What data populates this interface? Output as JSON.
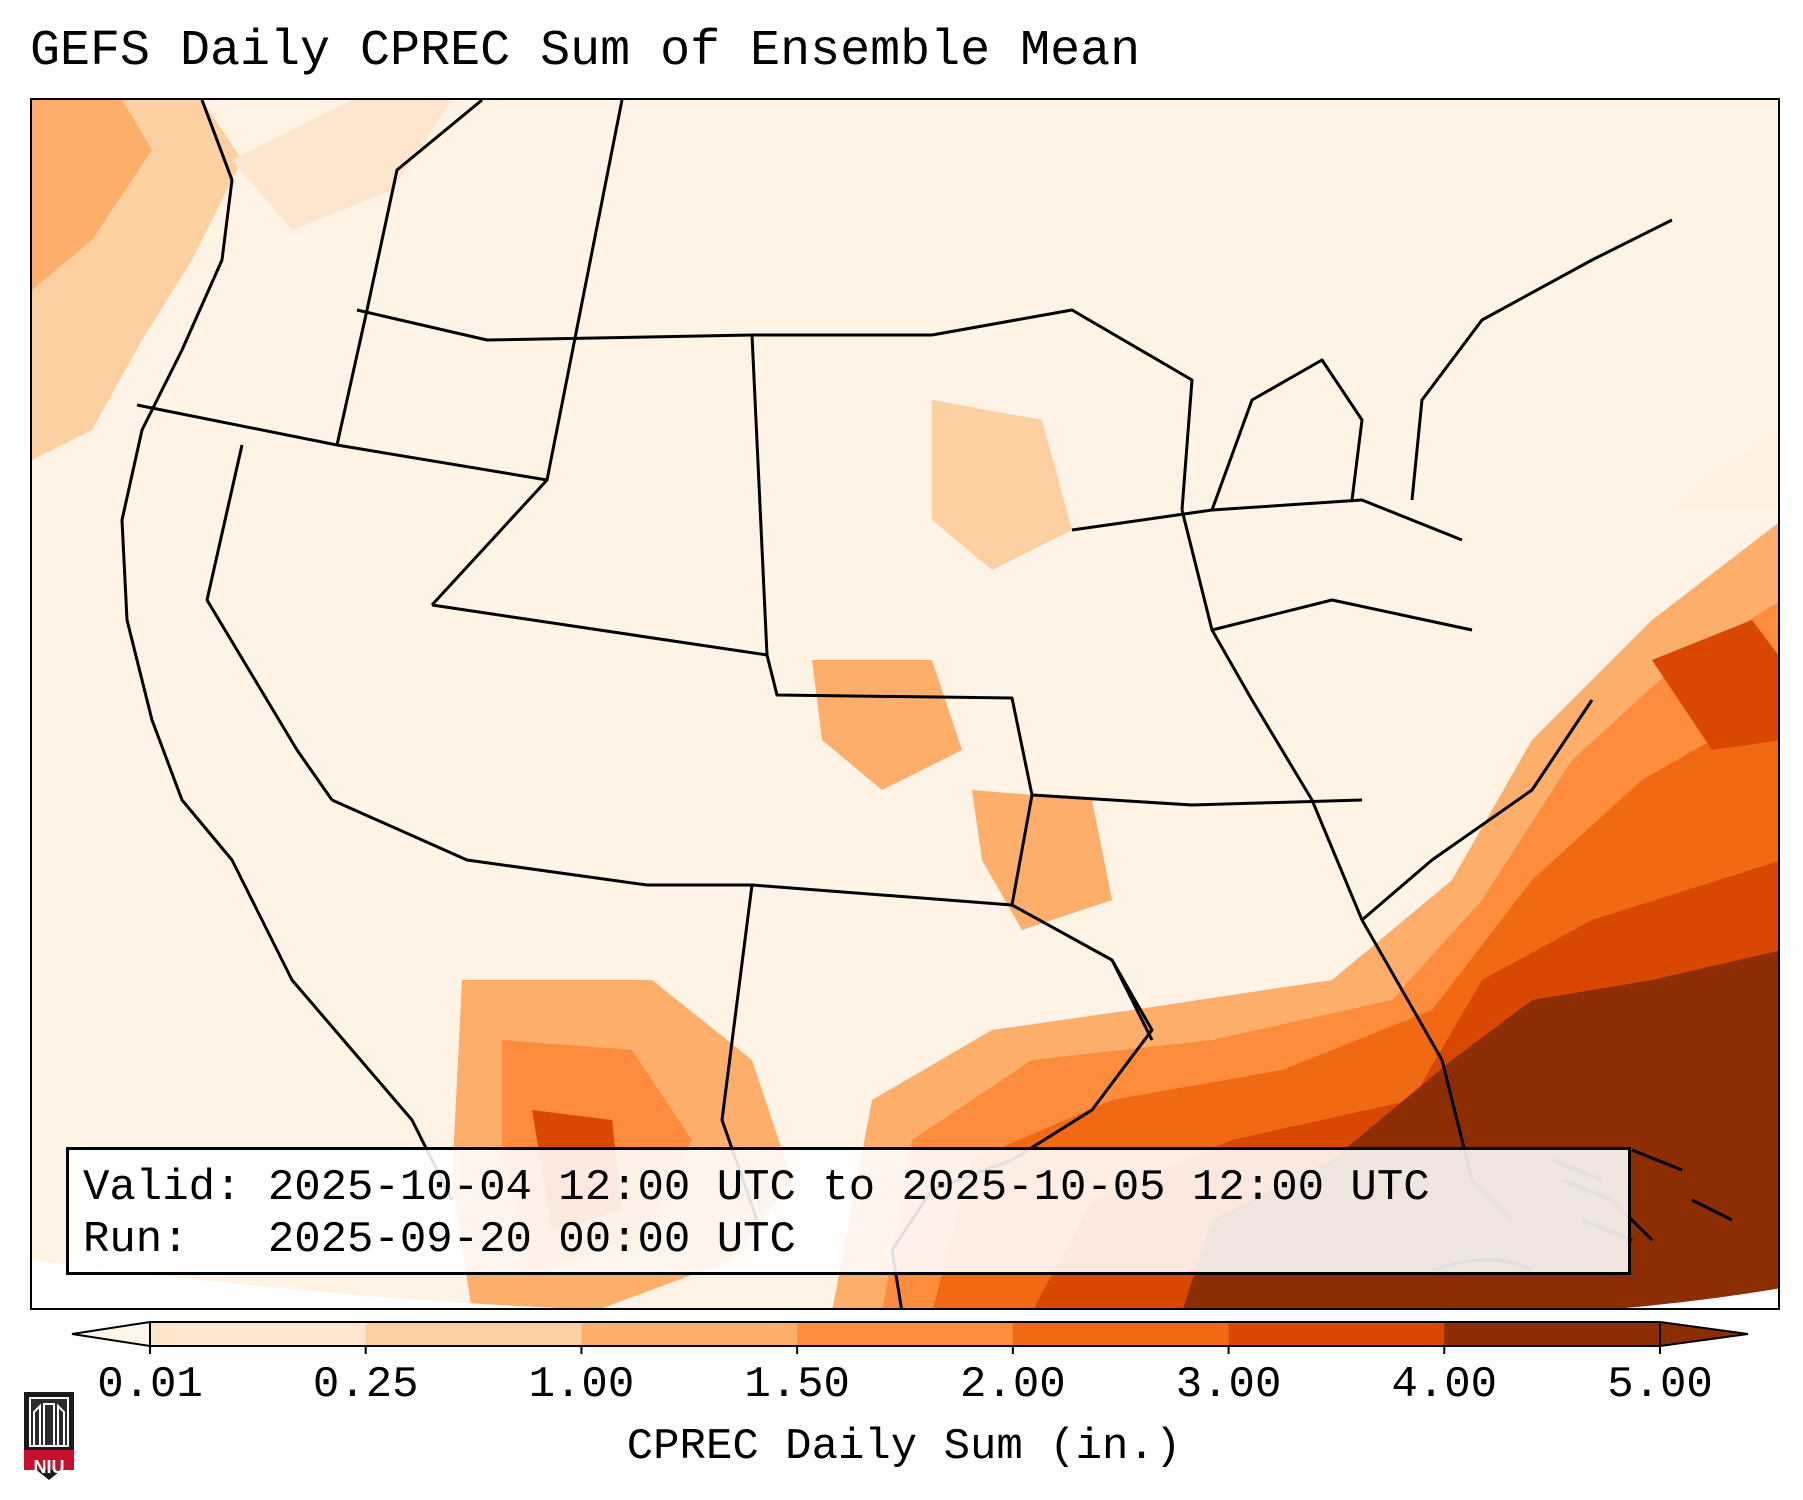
{
  "title": "GEFS Daily CPREC Sum of Ensemble Mean",
  "info": {
    "valid_label": "Valid:",
    "valid_value": "2025-10-04 12:00 UTC to 2025-10-05 12:00 UTC",
    "run_label": "Run:",
    "run_value": "2025-09-20 00:00 UTC"
  },
  "colorbar": {
    "label": "CPREC Daily Sum (in.)",
    "ticks": [
      "0.01",
      "0.25",
      "1.00",
      "1.50",
      "2.00",
      "3.00",
      "4.00",
      "5.00"
    ],
    "colors": [
      "#fff5eb",
      "#fee6ce",
      "#fdd0a2",
      "#fdae6b",
      "#fd8d3c",
      "#f16913",
      "#d94801",
      "#8c2d04"
    ]
  },
  "logo": {
    "text": "NIU",
    "color": "#c8102e"
  }
}
